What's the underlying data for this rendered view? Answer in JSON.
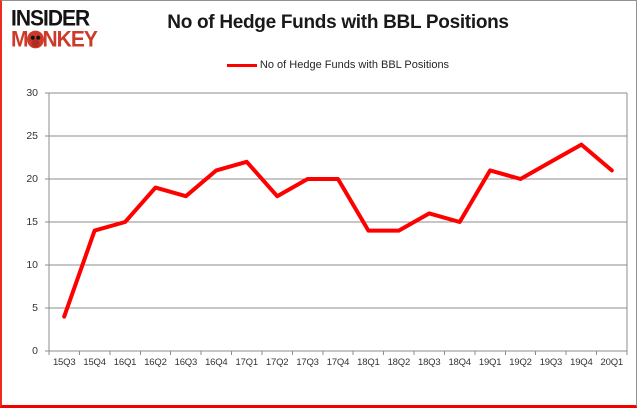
{
  "logo": {
    "line1_prefix": "INSIDER",
    "line2_prefix": "M",
    "line2_suffix": "NKEY",
    "text_color": "#141414",
    "accent_color": "#cd3a2b"
  },
  "header": {
    "title": "No of Hedge Funds with BBL Positions"
  },
  "legend": {
    "label": "No of Hedge Funds with BBL Positions",
    "swatch_color": "#ff0000",
    "position": "top-center"
  },
  "chart_data": {
    "type": "line",
    "title": "No of Hedge Funds with BBL Positions",
    "series_name": "No of Hedge Funds with BBL Positions",
    "categories": [
      "15Q3",
      "15Q4",
      "16Q1",
      "16Q2",
      "16Q3",
      "16Q4",
      "17Q1",
      "17Q2",
      "17Q3",
      "17Q4",
      "18Q1",
      "18Q2",
      "18Q3",
      "18Q4",
      "19Q1",
      "19Q2",
      "19Q3",
      "19Q4",
      "20Q1"
    ],
    "values": [
      4,
      14,
      15,
      19,
      18,
      21,
      22,
      18,
      20,
      20,
      14,
      14,
      16,
      15,
      21,
      20,
      22,
      24,
      21
    ],
    "xlabel": "",
    "ylabel": "",
    "ylim": [
      0,
      30
    ],
    "yticks": [
      0,
      5,
      10,
      15,
      20,
      25,
      30
    ],
    "grid": true,
    "legend_position": "top",
    "line_color": "#ff0000",
    "line_width": 4,
    "gridline_color": "#8c8c8c",
    "axis_color": "#8c8c8c",
    "tick_label_color": "#333333"
  }
}
